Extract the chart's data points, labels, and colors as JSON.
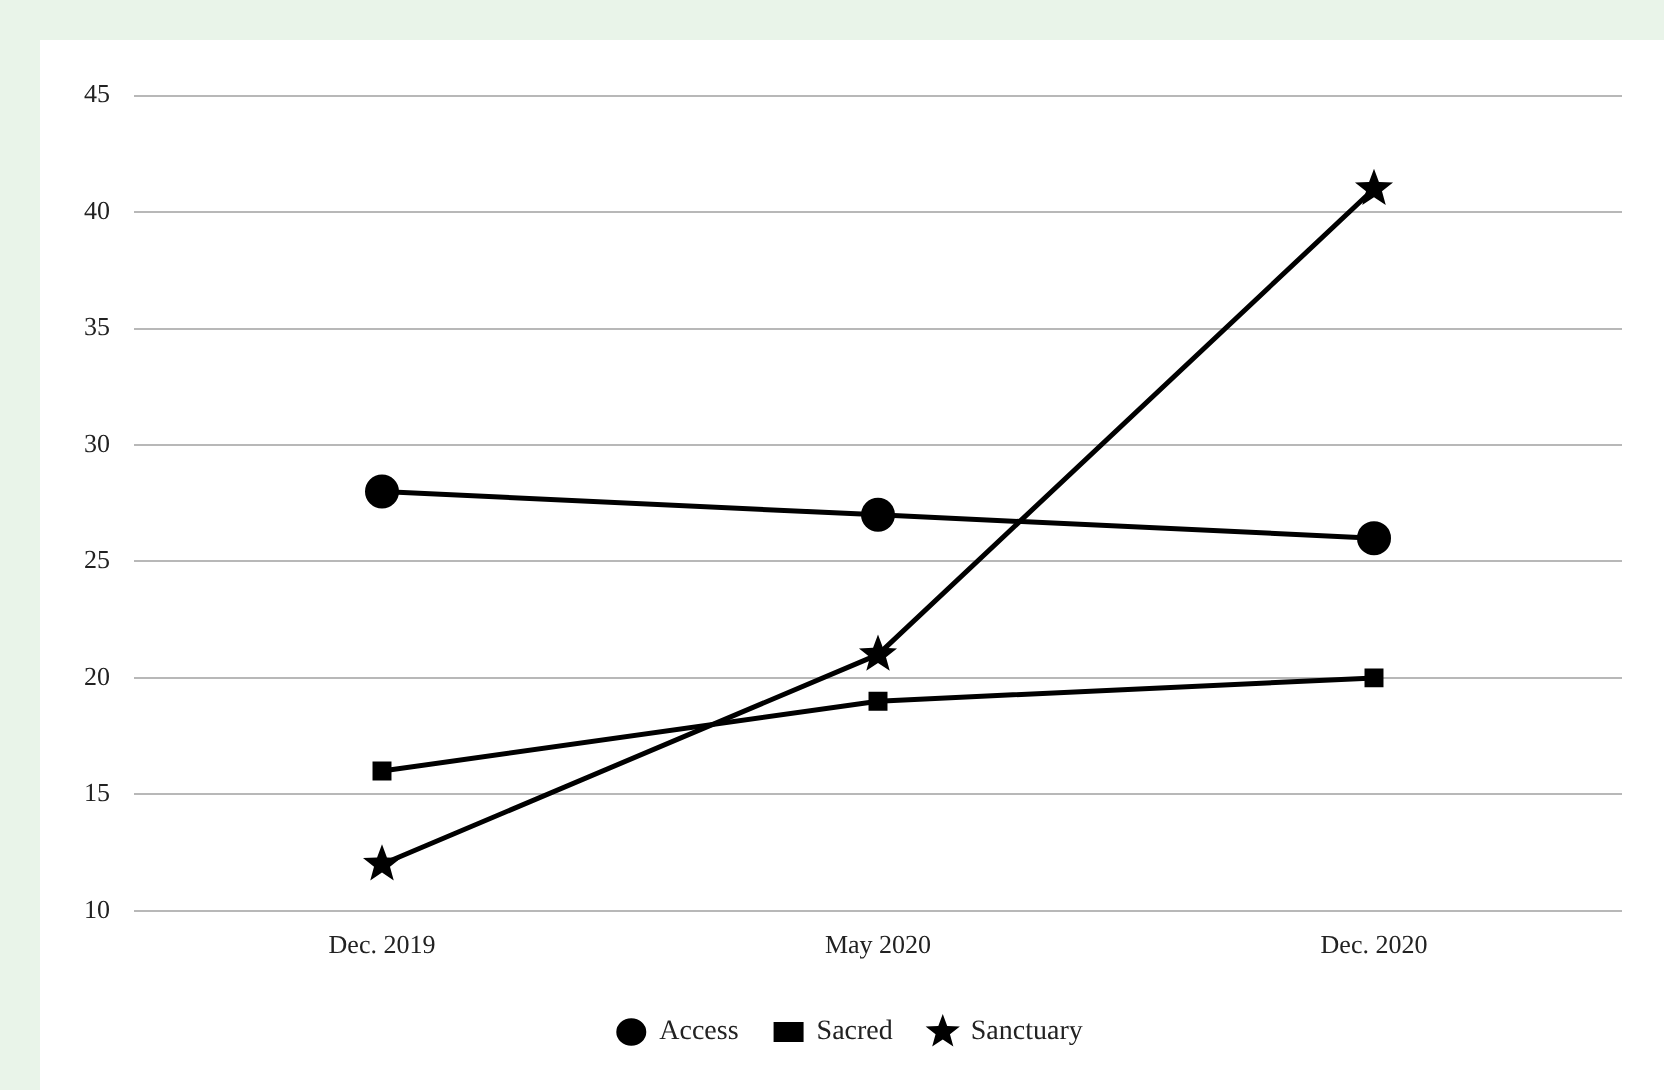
{
  "chart_data": {
    "type": "line",
    "categories": [
      "Dec. 2019",
      "May 2020",
      "Dec. 2020"
    ],
    "series": [
      {
        "name": "Access",
        "color": "#000000",
        "marker": "circle",
        "values": [
          28,
          27,
          26
        ]
      },
      {
        "name": "Sacred",
        "color": "#000000",
        "marker": "square",
        "values": [
          16,
          19,
          20
        ]
      },
      {
        "name": "Sanctuary",
        "color": "#000000",
        "marker": "star",
        "values": [
          12,
          21,
          41
        ]
      }
    ],
    "ylim": [
      10,
      45
    ],
    "yticks": [
      10,
      15,
      20,
      25,
      30,
      35,
      40,
      45
    ],
    "grid": "y",
    "legend": "bottom",
    "line_style": "solid"
  }
}
